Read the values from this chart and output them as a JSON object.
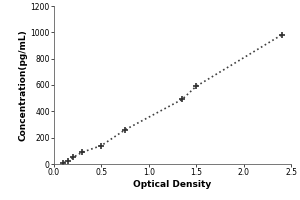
{
  "x_data": [
    0.1,
    0.15,
    0.2,
    0.3,
    0.5,
    0.75,
    1.35,
    1.5,
    2.4
  ],
  "y_data": [
    10,
    25,
    50,
    90,
    140,
    260,
    490,
    590,
    980
  ],
  "xlabel": "Optical Density",
  "ylabel": "Concentration(pg/mL)",
  "xlim": [
    0,
    2.5
  ],
  "ylim": [
    0,
    1200
  ],
  "xticks": [
    0,
    0.5,
    1,
    1.5,
    2,
    2.5
  ],
  "yticks": [
    0,
    200,
    400,
    600,
    800,
    1000,
    1200
  ],
  "bg_color": "#ffffff",
  "plot_bg_color": "#ffffff",
  "line_color": "#404040",
  "marker_color": "#303030",
  "marker": "+",
  "linestyle": "dotted",
  "linewidth": 1.2,
  "markersize": 5,
  "label_fontsize": 6.5,
  "tick_fontsize": 5.5,
  "label_fontweight": "bold"
}
